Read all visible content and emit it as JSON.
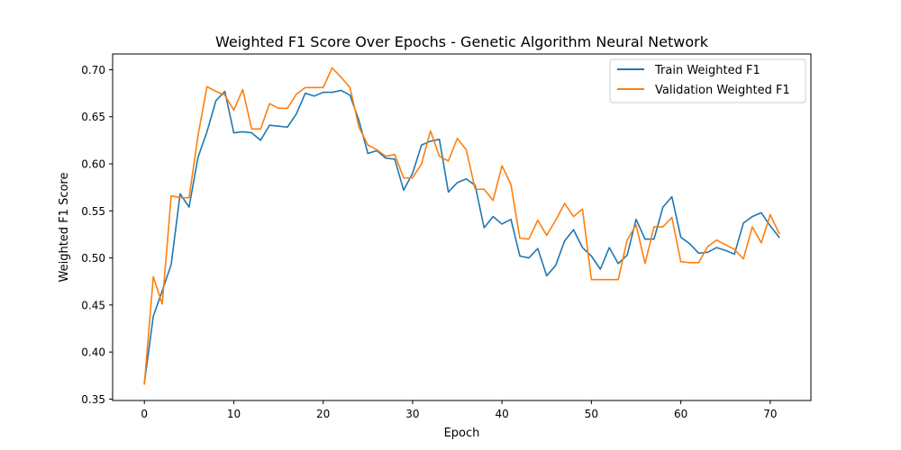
{
  "chart_data": {
    "type": "line",
    "title": "Weighted F1 Score Over Epochs - Genetic Algorithm Neural Network",
    "xlabel": "Epoch",
    "ylabel": "Weighted F1 Score",
    "xlim": [
      -3.55,
      74.55
    ],
    "ylim": [
      0.3485,
      0.7167
    ],
    "xticks": [
      0,
      10,
      20,
      30,
      40,
      50,
      60,
      70
    ],
    "yticks": [
      0.35,
      0.4,
      0.45,
      0.5,
      0.55,
      0.6,
      0.65,
      0.7
    ],
    "ytick_labels": [
      "0.35",
      "0.40",
      "0.45",
      "0.50",
      "0.55",
      "0.60",
      "0.65",
      "0.70"
    ],
    "legend_position": "top-right",
    "grid": false,
    "series": [
      {
        "name": "Train Weighted F1",
        "color": "#1f77b4",
        "values": [
          0.367,
          0.438,
          0.465,
          0.493,
          0.568,
          0.554,
          0.607,
          0.634,
          0.667,
          0.677,
          0.633,
          0.634,
          0.633,
          0.625,
          0.641,
          0.64,
          0.639,
          0.653,
          0.675,
          0.672,
          0.676,
          0.676,
          0.678,
          0.673,
          0.646,
          0.611,
          0.614,
          0.606,
          0.605,
          0.572,
          0.59,
          0.62,
          0.624,
          0.626,
          0.57,
          0.58,
          0.584,
          0.577,
          0.532,
          0.544,
          0.536,
          0.541,
          0.502,
          0.5,
          0.51,
          0.481,
          0.492,
          0.518,
          0.53,
          0.511,
          0.502,
          0.488,
          0.511,
          0.494,
          0.503,
          0.541,
          0.52,
          0.52,
          0.554,
          0.565,
          0.522,
          0.515,
          0.505,
          0.506,
          0.511,
          0.508,
          0.504,
          0.537,
          0.544,
          0.548,
          0.534,
          0.522
        ]
      },
      {
        "name": "Validation Weighted F1",
        "color": "#ff7f0e",
        "values": [
          0.366,
          0.48,
          0.451,
          0.566,
          0.564,
          0.564,
          0.63,
          0.682,
          0.677,
          0.673,
          0.657,
          0.679,
          0.637,
          0.637,
          0.664,
          0.659,
          0.659,
          0.674,
          0.681,
          0.681,
          0.681,
          0.702,
          0.692,
          0.681,
          0.639,
          0.62,
          0.615,
          0.608,
          0.61,
          0.585,
          0.585,
          0.6,
          0.635,
          0.608,
          0.603,
          0.627,
          0.615,
          0.573,
          0.573,
          0.561,
          0.598,
          0.578,
          0.521,
          0.52,
          0.54,
          0.524,
          0.54,
          0.558,
          0.544,
          0.552,
          0.477,
          0.477,
          0.477,
          0.477,
          0.519,
          0.535,
          0.494,
          0.533,
          0.533,
          0.543,
          0.496,
          0.495,
          0.495,
          0.512,
          0.519,
          0.514,
          0.509,
          0.499,
          0.533,
          0.516,
          0.546,
          0.526
        ]
      }
    ]
  }
}
